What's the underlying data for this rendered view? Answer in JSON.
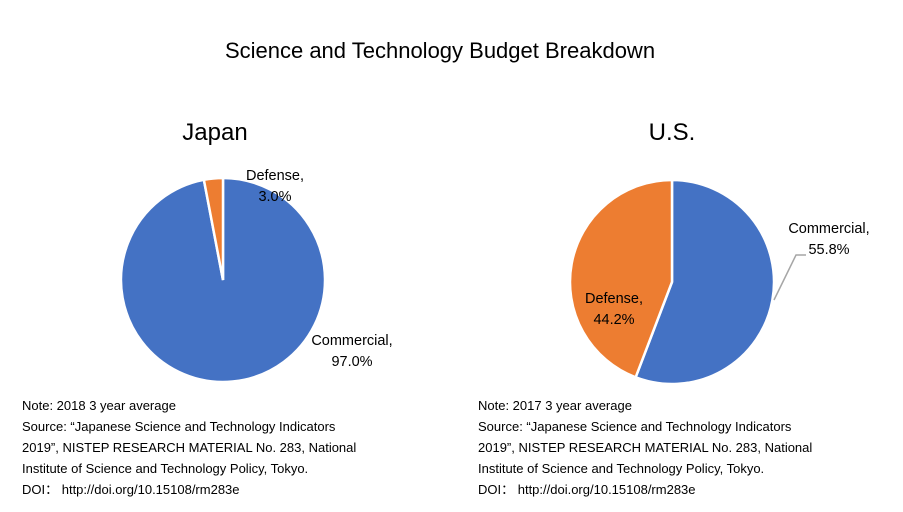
{
  "chart_data": {
    "title": "Science and Technology Budget Breakdown",
    "charts": [
      {
        "type": "pie",
        "title": "Japan",
        "slices": [
          {
            "label": "Commercial",
            "value": 97.0,
            "display": "97.0%",
            "color": "#4472C4"
          },
          {
            "label": "Defense",
            "value": 3.0,
            "display": "3.0%",
            "color": "#ED7D31"
          }
        ],
        "notes": [
          "Note: 2018 3 year average",
          "Source: “Japanese Science and Technology Indicators",
          "2019”, NISTEP RESEARCH MATERIAL No. 283, National",
          "Institute of Science and Technology Policy, Tokyo.",
          "DOI： http://doi.org/10.15108/rm283e"
        ]
      },
      {
        "type": "pie",
        "title": "U.S.",
        "slices": [
          {
            "label": "Commercial",
            "value": 55.8,
            "display": "55.8%",
            "color": "#4472C4"
          },
          {
            "label": "Defense",
            "value": 44.2,
            "display": "44.2%",
            "color": "#ED7D31"
          }
        ],
        "notes": [
          "Note: 2017 3 year average",
          "Source: “Japanese Science and Technology Indicators",
          "2019”, NISTEP RESEARCH MATERIAL No. 283, National",
          "Institute of Science and Technology Policy, Tokyo.",
          "DOI： http://doi.org/10.15108/rm283e"
        ]
      }
    ]
  }
}
